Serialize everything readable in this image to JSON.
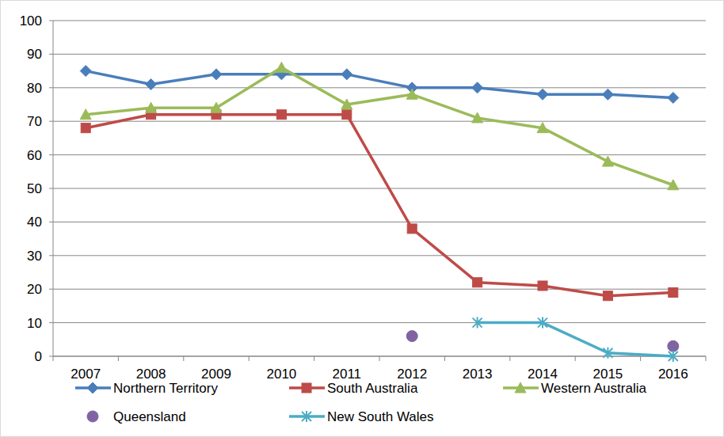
{
  "chart_data": {
    "type": "line",
    "categories": [
      "2007",
      "2008",
      "2009",
      "2010",
      "2011",
      "2012",
      "2013",
      "2014",
      "2015",
      "2016"
    ],
    "series": [
      {
        "name": "Northern Territory",
        "color": "#4a7ebb",
        "marker": "diamond",
        "line_style": "solid",
        "values": [
          85,
          81,
          84,
          84,
          84,
          80,
          80,
          78,
          78,
          77
        ]
      },
      {
        "name": "South Australia",
        "color": "#be4b48",
        "marker": "square",
        "line_style": "solid",
        "values": [
          68,
          72,
          72,
          72,
          72,
          38,
          22,
          21,
          18,
          19
        ]
      },
      {
        "name": "Western Australia",
        "color": "#9bbb59",
        "marker": "triangle",
        "line_style": "solid",
        "values": [
          72,
          74,
          74,
          86,
          75,
          78,
          71,
          68,
          58,
          51
        ]
      },
      {
        "name": "Queensland",
        "color": "#8064a2",
        "marker": "circle",
        "line_style": "none",
        "values": [
          null,
          null,
          null,
          null,
          null,
          6,
          null,
          null,
          null,
          3
        ]
      },
      {
        "name": "New South Wales",
        "color": "#4bacc6",
        "marker": "star",
        "line_style": "solid",
        "values": [
          null,
          null,
          null,
          null,
          null,
          null,
          10,
          10,
          1,
          0
        ]
      }
    ],
    "ylim": [
      0,
      100
    ],
    "yticks": [
      0,
      10,
      20,
      30,
      40,
      50,
      60,
      70,
      80,
      90,
      100
    ],
    "grid": true,
    "legend": "bottom"
  }
}
